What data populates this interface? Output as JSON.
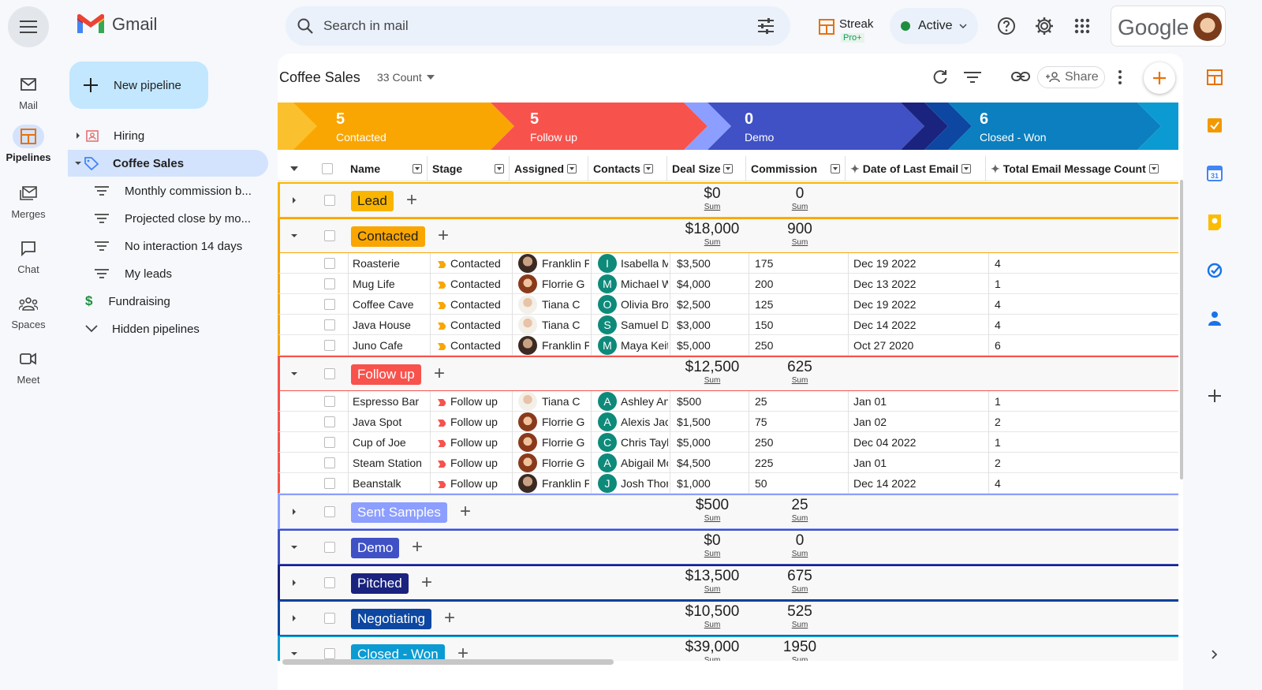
{
  "app": {
    "name": "Gmail"
  },
  "search": {
    "placeholder": "Search in mail"
  },
  "header": {
    "streak": "Streak",
    "streak_plan": "Pro+",
    "status": "Active",
    "google": "Google"
  },
  "rail": {
    "items": [
      {
        "label": "Mail",
        "icon": "mail-icon"
      },
      {
        "label": "Pipelines",
        "icon": "pipelines-icon"
      },
      {
        "label": "Merges",
        "icon": "merges-icon"
      },
      {
        "label": "Chat",
        "icon": "chat-icon"
      },
      {
        "label": "Spaces",
        "icon": "spaces-icon"
      },
      {
        "label": "Meet",
        "icon": "meet-icon"
      }
    ]
  },
  "sidebar": {
    "new_pipeline": "New pipeline",
    "items": [
      {
        "label": "Hiring"
      },
      {
        "label": "Coffee Sales"
      },
      {
        "label": "Monthly commission b..."
      },
      {
        "label": "Projected close by mo..."
      },
      {
        "label": "No interaction 14 days"
      },
      {
        "label": "My leads"
      },
      {
        "label": "Fundraising"
      },
      {
        "label": "Hidden pipelines"
      }
    ]
  },
  "pipeline": {
    "title": "Coffee Sales",
    "count": "33 Count",
    "share": "Share"
  },
  "stages": [
    {
      "count": "5",
      "label": "Contacted",
      "color": "#f9a602"
    },
    {
      "count": "5",
      "label": "Follow up",
      "color": "#f8524c"
    },
    {
      "count": "0",
      "label": "Demo",
      "color": "#3f51c5"
    },
    {
      "count": "6",
      "label": "Closed - Won",
      "color": "#0b7fbf"
    }
  ],
  "columns": [
    "Name",
    "Stage",
    "Assigned",
    "Contacts",
    "Deal Size",
    "Commission",
    "Date of Last Email",
    "Total Email Message Count"
  ],
  "sum_label": "Sum",
  "groups": {
    "lead": {
      "name": "Lead",
      "deal": "$0",
      "comm": "0",
      "color": "#f9b500"
    },
    "contacted": {
      "name": "Contacted",
      "deal": "$18,000",
      "comm": "900",
      "color": "#f9a602"
    },
    "followup": {
      "name": "Follow up",
      "deal": "$12,500",
      "comm": "625",
      "color": "#f8524c"
    },
    "sent": {
      "name": "Sent Samples",
      "deal": "$500",
      "comm": "25",
      "color": "#8c9eff"
    },
    "demo": {
      "name": "Demo",
      "deal": "$0",
      "comm": "0",
      "color": "#3f51c5"
    },
    "pitched": {
      "name": "Pitched",
      "deal": "$13,500",
      "comm": "675",
      "color": "#1a237e"
    },
    "negotiating": {
      "name": "Negotiating",
      "deal": "$10,500",
      "comm": "525",
      "color": "#0d47a1"
    },
    "closed": {
      "name": "Closed - Won",
      "deal": "$39,000",
      "comm": "1950",
      "color": "#0b9bd2"
    }
  },
  "contacted_rows": [
    {
      "name": "Roasterie",
      "stage": "Contacted",
      "assigned": "Franklin F",
      "letter": "I",
      "contact": "Isabella M",
      "deal": "$3,500",
      "comm": "175",
      "date": "Dec 19 2022",
      "count": "4"
    },
    {
      "name": "Mug Life",
      "stage": "Contacted",
      "assigned": "Florrie G",
      "letter": "M",
      "contact": "Michael W",
      "deal": "$4,000",
      "comm": "200",
      "date": "Dec 13 2022",
      "count": "1"
    },
    {
      "name": "Coffee Cave",
      "stage": "Contacted",
      "assigned": "Tiana C",
      "letter": "O",
      "contact": "Olivia Brov",
      "deal": "$2,500",
      "comm": "125",
      "date": "Dec 19 2022",
      "count": "4"
    },
    {
      "name": "Java House",
      "stage": "Contacted",
      "assigned": "Tiana C",
      "letter": "S",
      "contact": "Samuel Da",
      "deal": "$3,000",
      "comm": "150",
      "date": "Dec 14 2022",
      "count": "4"
    },
    {
      "name": "Juno Cafe",
      "stage": "Contacted",
      "assigned": "Franklin F",
      "letter": "M",
      "contact": "Maya Keitl",
      "deal": "$5,000",
      "comm": "250",
      "date": "Oct 27 2020",
      "count": "6"
    }
  ],
  "followup_rows": [
    {
      "name": "Espresso Bar",
      "stage": "Follow up",
      "assigned": "Tiana C",
      "letter": "A",
      "contact": "Ashley And",
      "deal": "$500",
      "comm": "25",
      "date": "Jan 01",
      "count": "1"
    },
    {
      "name": "Java Spot",
      "stage": "Follow up",
      "assigned": "Florrie G",
      "letter": "A",
      "contact": "Alexis Jacl",
      "deal": "$1,500",
      "comm": "75",
      "date": "Jan 02",
      "count": "2"
    },
    {
      "name": "Cup of Joe",
      "stage": "Follow up",
      "assigned": "Florrie G",
      "letter": "C",
      "contact": "Chris Tayle",
      "deal": "$5,000",
      "comm": "250",
      "date": "Dec 04 2022",
      "count": "1"
    },
    {
      "name": "Steam Station",
      "stage": "Follow up",
      "assigned": "Florrie G",
      "letter": "A",
      "contact": "Abigail Mo",
      "deal": "$4,500",
      "comm": "225",
      "date": "Jan 01",
      "count": "2"
    },
    {
      "name": "Beanstalk",
      "stage": "Follow up",
      "assigned": "Franklin F",
      "letter": "J",
      "contact": "Josh Thon",
      "deal": "$1,000",
      "comm": "50",
      "date": "Dec 14 2022",
      "count": "4"
    }
  ]
}
